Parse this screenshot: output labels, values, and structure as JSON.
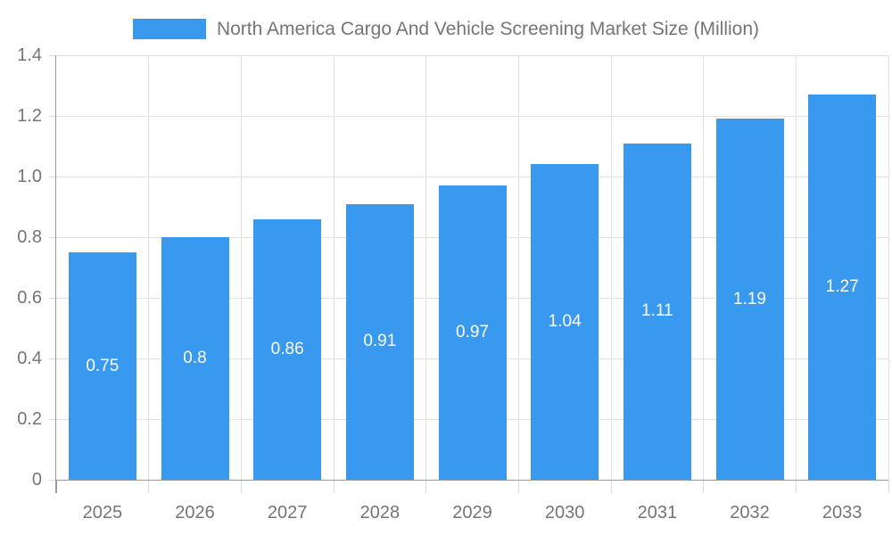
{
  "chart_data": {
    "type": "bar",
    "title": "North America Cargo And Vehicle Screening Market Size (Million)",
    "categories": [
      "2025",
      "2026",
      "2027",
      "2028",
      "2029",
      "2030",
      "2031",
      "2032",
      "2033"
    ],
    "values": [
      0.75,
      0.8,
      0.86,
      0.91,
      0.97,
      1.04,
      1.11,
      1.19,
      1.27
    ],
    "value_labels": [
      "0.75",
      "0.8",
      "0.86",
      "0.91",
      "0.97",
      "1.04",
      "1.11",
      "1.19",
      "1.27"
    ],
    "xlabel": "",
    "ylabel": "",
    "ylim": [
      0,
      1.4
    ],
    "ytick_labels": [
      "1.4",
      "1.2",
      "1.0",
      "0.8",
      "0.6",
      "0.4",
      "0.2",
      "0"
    ],
    "grid": true,
    "legend_position": "top",
    "colors": {
      "bar": "#3899ee",
      "gridline": "#e2e2e2",
      "axis": "#9a9a9a",
      "tick": "#dcdcdc",
      "text": "#757575",
      "bar_label": "#ffffff",
      "background": "#ffffff"
    }
  }
}
